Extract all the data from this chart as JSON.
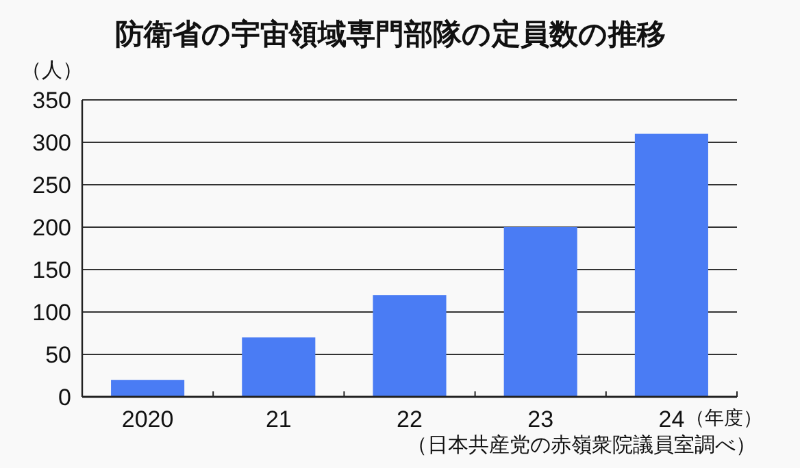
{
  "chart_data": {
    "type": "bar",
    "title": "防衛省の宇宙領域専門部隊の定員数の推移",
    "ylabel": "（人）",
    "xlabel": "（年度）",
    "annotations": [
      "（日本共産党の赤嶺衆院議員室調べ）"
    ],
    "categories": [
      "2020",
      "21",
      "22",
      "23",
      "24"
    ],
    "values": [
      20,
      70,
      120,
      200,
      310
    ],
    "color": "#4a7cf4",
    "ylim": [
      0,
      350
    ],
    "yticks": [
      0,
      50,
      100,
      150,
      200,
      250,
      300,
      350
    ],
    "grid": "y"
  }
}
